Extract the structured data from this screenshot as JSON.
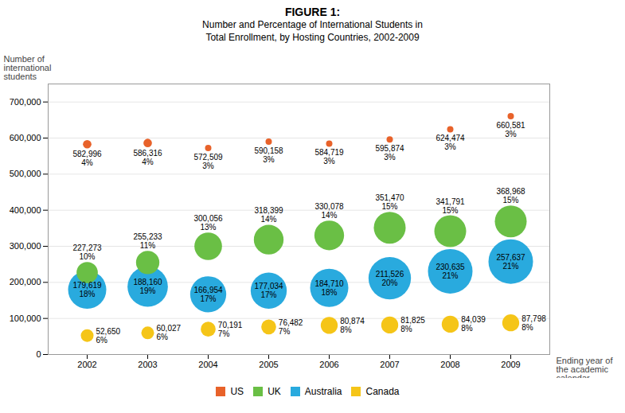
{
  "chart_data": {
    "type": "bubble",
    "title": "FIGURE 1:",
    "subtitle": "Number and Percentage of International Students in\nTotal Enrollment, by Hosting Countries, 2002-2009",
    "xlabel": "Ending year of\nthe academic\ncalendar",
    "ylabel": "Number of\ninternational\nstudents",
    "categories": [
      "2002",
      "2003",
      "2004",
      "2005",
      "2006",
      "2007",
      "2008",
      "2009"
    ],
    "series": [
      {
        "name": "US",
        "color": "#E8622A",
        "values": [
          582996,
          586316,
          572509,
          590158,
          584719,
          595874,
          624474,
          660581
        ],
        "value_labels": [
          "582,996",
          "586,316",
          "572,509",
          "590,158",
          "584,719",
          "595,874",
          "624,474",
          "660,581"
        ],
        "sizes": [
          4,
          4,
          3,
          3,
          3,
          3,
          3,
          3
        ],
        "size_labels": [
          "4%",
          "4%",
          "3%",
          "3%",
          "3%",
          "3%",
          "3%",
          "3%"
        ]
      },
      {
        "name": "UK",
        "color": "#6ABF45",
        "values": [
          227273,
          255233,
          300056,
          318399,
          330078,
          351470,
          341791,
          368968
        ],
        "value_labels": [
          "227,273",
          "255,233",
          "300,056",
          "318,399",
          "330,078",
          "351,470",
          "341,791",
          "368,968"
        ],
        "sizes": [
          10,
          11,
          13,
          14,
          14,
          15,
          15,
          15
        ],
        "size_labels": [
          "10%",
          "11%",
          "13%",
          "14%",
          "14%",
          "15%",
          "15%",
          "15%"
        ]
      },
      {
        "name": "Australia",
        "color": "#29AADE",
        "values": [
          179619,
          188160,
          166954,
          177034,
          184710,
          211526,
          230635,
          257637
        ],
        "value_labels": [
          "179,619",
          "188,160",
          "166,954",
          "177,034",
          "184,710",
          "211,526",
          "230,635",
          "257,637"
        ],
        "sizes": [
          18,
          19,
          17,
          17,
          18,
          20,
          21,
          21
        ],
        "size_labels": [
          "18%",
          "19%",
          "17%",
          "17%",
          "18%",
          "20%",
          "21%",
          "21%"
        ]
      },
      {
        "name": "Canada",
        "color": "#F5C518",
        "values": [
          52650,
          60027,
          70191,
          76482,
          80874,
          81825,
          84039,
          87798
        ],
        "value_labels": [
          "52,650",
          "60,027",
          "70,191",
          "76,482",
          "80,874",
          "81,825",
          "84,039",
          "87,798"
        ],
        "sizes": [
          6,
          6,
          7,
          7,
          8,
          8,
          8,
          8
        ],
        "size_labels": [
          "6%",
          "6%",
          "7%",
          "7%",
          "8%",
          "8%",
          "8%",
          "8%"
        ]
      }
    ],
    "ylim": [
      0,
      750000
    ],
    "yticks": [
      0,
      {
        "value": 100000,
        "label": "100,000"
      },
      {
        "value": 200000,
        "label": "200,000"
      },
      {
        "value": 300000,
        "label": "300,000"
      },
      {
        "value": 400000,
        "label": "400,000"
      },
      {
        "value": 500000,
        "label": "500,000"
      },
      {
        "value": 600000,
        "label": "600,000"
      },
      {
        "value": 700000,
        "label": "700,000"
      }
    ],
    "grid": true,
    "legend": "bottom",
    "data_labels": true
  }
}
